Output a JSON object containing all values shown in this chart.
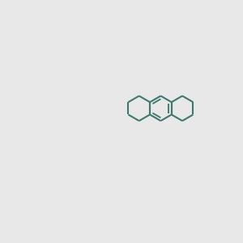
{
  "background_color": "#e8e8e8",
  "bond_color": "#3d7a6e",
  "bond_color_dark": "#2d5a52",
  "red": "#cc2200",
  "blue": "#1a1aee",
  "yellow": "#cccc00",
  "gray": "#888888",
  "black": "#000000",
  "lw": 1.5,
  "lw_bold": 2.5
}
